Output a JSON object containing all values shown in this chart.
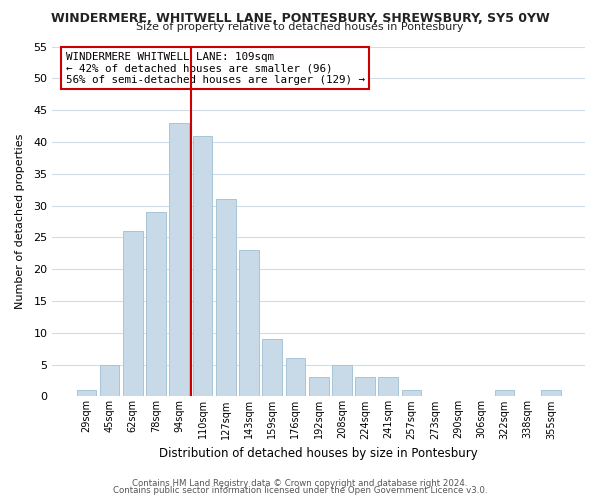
{
  "title": "WINDERMERE, WHITWELL LANE, PONTESBURY, SHREWSBURY, SY5 0YW",
  "subtitle": "Size of property relative to detached houses in Pontesbury",
  "xlabel": "Distribution of detached houses by size in Pontesbury",
  "ylabel": "Number of detached properties",
  "bar_labels": [
    "29sqm",
    "45sqm",
    "62sqm",
    "78sqm",
    "94sqm",
    "110sqm",
    "127sqm",
    "143sqm",
    "159sqm",
    "176sqm",
    "192sqm",
    "208sqm",
    "224sqm",
    "241sqm",
    "257sqm",
    "273sqm",
    "290sqm",
    "306sqm",
    "322sqm",
    "338sqm",
    "355sqm"
  ],
  "bar_heights": [
    1,
    5,
    26,
    29,
    43,
    41,
    31,
    23,
    9,
    6,
    3,
    5,
    3,
    3,
    1,
    0,
    0,
    0,
    1,
    0,
    1
  ],
  "bar_color": "#c8d9e8",
  "bar_edgecolor": "#a8c4d8",
  "vline_x_index": 5,
  "vline_color": "#cc0000",
  "ylim": [
    0,
    55
  ],
  "yticks": [
    0,
    5,
    10,
    15,
    20,
    25,
    30,
    35,
    40,
    45,
    50,
    55
  ],
  "annotation_text_line1": "WINDERMERE WHITWELL LANE: 109sqm",
  "annotation_text_line2": "← 42% of detached houses are smaller (96)",
  "annotation_text_line3": "56% of semi-detached houses are larger (129) →",
  "footer_line1": "Contains HM Land Registry data © Crown copyright and database right 2024.",
  "footer_line2": "Contains public sector information licensed under the Open Government Licence v3.0.",
  "background_color": "#ffffff",
  "grid_color": "#d0dde8"
}
